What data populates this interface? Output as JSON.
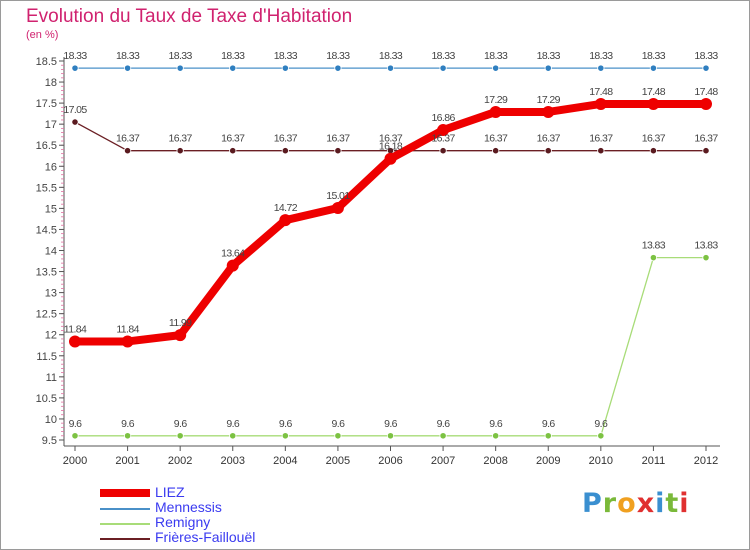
{
  "title": "Evolution du Taux de Taxe d'Habitation",
  "subtitle": "(en %)",
  "logo_text": "Proxiti",
  "chart_data": {
    "type": "line",
    "title": "Evolution du Taux de Taxe d'Habitation",
    "ylabel": "(en %)",
    "xlabel": "",
    "x": [
      "2000",
      "2001",
      "2002",
      "2003",
      "2004",
      "2005",
      "2006",
      "2007",
      "2008",
      "2009",
      "2010",
      "2011",
      "2012"
    ],
    "ylim": [
      9.5,
      18.5
    ],
    "yticks": [
      "9.5",
      "10",
      "10.5",
      "11",
      "11.5",
      "12",
      "12.5",
      "13",
      "13.5",
      "14",
      "14.5",
      "15",
      "15.5",
      "16",
      "16.5",
      "17",
      "17.5",
      "18",
      "18.5"
    ],
    "grid": false,
    "legend_position": "bottom-left",
    "series": [
      {
        "name": "Mennessis",
        "color": "#4a90c8",
        "marker_color": "#2f7fc0",
        "values": [
          18.33,
          18.33,
          18.33,
          18.33,
          18.33,
          18.33,
          18.33,
          18.33,
          18.33,
          18.33,
          18.33,
          18.33,
          18.33
        ],
        "labels": [
          "18.33",
          "18.33",
          "18.33",
          "18.33",
          "18.33",
          "18.33",
          "18.33",
          "18.33",
          "18.33",
          "18.33",
          "18.33",
          "18.33",
          "18.33"
        ]
      },
      {
        "name": "Frières-Faillouël",
        "color": "#6b1f24",
        "marker_color": "#5a1a1f",
        "values": [
          17.05,
          16.37,
          16.37,
          16.37,
          16.37,
          16.37,
          16.37,
          16.37,
          16.37,
          16.37,
          16.37,
          16.37,
          16.37
        ],
        "labels": [
          "17.05",
          "16.37",
          "16.37",
          "16.37",
          "16.37",
          "16.37",
          "16.37",
          "16.37",
          "16.37",
          "16.37",
          "16.37",
          "16.37",
          "16.37"
        ]
      },
      {
        "name": "Remigny",
        "color": "#a8dc78",
        "marker_color": "#7cc242",
        "values": [
          9.6,
          9.6,
          9.6,
          9.6,
          9.6,
          9.6,
          9.6,
          9.6,
          9.6,
          9.6,
          9.6,
          13.83,
          13.83
        ],
        "labels": [
          "9.6",
          "9.6",
          "9.6",
          "9.6",
          "9.6",
          "9.6",
          "9.6",
          "9.6",
          "9.6",
          "9.6",
          "9.6",
          "13.83",
          "13.83"
        ]
      },
      {
        "name": "LIEZ",
        "color": "#ee0000",
        "marker_color": "#ee0000",
        "values": [
          11.84,
          11.84,
          11.99,
          13.64,
          14.72,
          15.01,
          16.18,
          16.86,
          17.29,
          17.29,
          17.48,
          17.48,
          17.48
        ],
        "labels": [
          "11.84",
          "11.84",
          "11.99",
          "13.64",
          "14.72",
          "15.01",
          "16.18",
          "16.86",
          "17.29",
          "17.29",
          "17.48",
          "17.48",
          "17.48"
        ]
      }
    ],
    "legend": [
      {
        "name": "LIEZ",
        "color": "#ee0000",
        "thick": true
      },
      {
        "name": "Mennessis",
        "color": "#4a90c8",
        "thick": false
      },
      {
        "name": "Remigny",
        "color": "#a8dc78",
        "thick": false
      },
      {
        "name": "Frières-Faillouël",
        "color": "#6b1f24",
        "thick": false
      }
    ]
  }
}
